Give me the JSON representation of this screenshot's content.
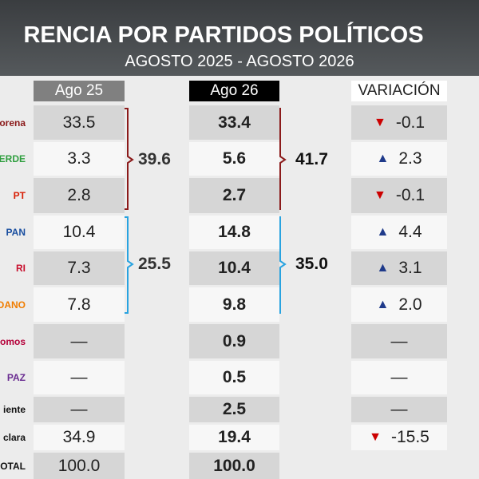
{
  "header": {
    "title": "RENCIA POR PARTIDOS POLÍTICOS",
    "subtitle": "AGOSTO 2025 - AGOSTO 2026"
  },
  "table": {
    "columns": [
      "Ago 25",
      "Ago 26",
      "VARIACIÓN"
    ],
    "rows": [
      {
        "party": "orena",
        "color": "#8b1a1a",
        "ago25": "33.5",
        "ago26": "33.4",
        "arrow": "▼",
        "change": "-0.1"
      },
      {
        "party": "VERDE",
        "color": "#2e9e3e",
        "ago25": "3.3",
        "ago26": "5.6",
        "arrow": "▲",
        "change": "2.3"
      },
      {
        "party": "PT",
        "color": "#d81e05",
        "ago25": "2.8",
        "ago26": "2.7",
        "arrow": "▼",
        "change": "-0.1"
      },
      {
        "party": "PAN",
        "color": "#1a4fa0",
        "ago25": "10.4",
        "ago26": "14.8",
        "arrow": "▲",
        "change": "4.4"
      },
      {
        "party": "RI",
        "color": "#c8102e",
        "ago25": "7.3",
        "ago26": "10.4",
        "arrow": "▲",
        "change": "3.1"
      },
      {
        "party": "UDADANO",
        "color": "#f07d00",
        "ago25": "7.8",
        "ago26": "9.8",
        "arrow": "▲",
        "change": "2.0"
      },
      {
        "party": "omos",
        "color": "#b5003a",
        "ago25": "—",
        "ago26": "0.9",
        "change": "—"
      },
      {
        "party": "PAZ",
        "color": "#6a2c91",
        "ago25": "—",
        "ago26": "0.5",
        "change": "—"
      },
      {
        "party": "iente",
        "color": "#111111",
        "ago25": "—",
        "ago26": "2.5",
        "change": "—"
      },
      {
        "party": "clara",
        "color": "#111111",
        "ago25": "34.9",
        "ago26": "19.4",
        "arrow": "▼",
        "change": "-15.5"
      },
      {
        "party": "OTAL",
        "color": "#111111",
        "ago25": "100.0",
        "ago26": "100.0"
      }
    ],
    "groups": {
      "ago25": [
        "39.6",
        "25.5"
      ],
      "ago26": [
        "41.7",
        "35.0"
      ]
    }
  }
}
